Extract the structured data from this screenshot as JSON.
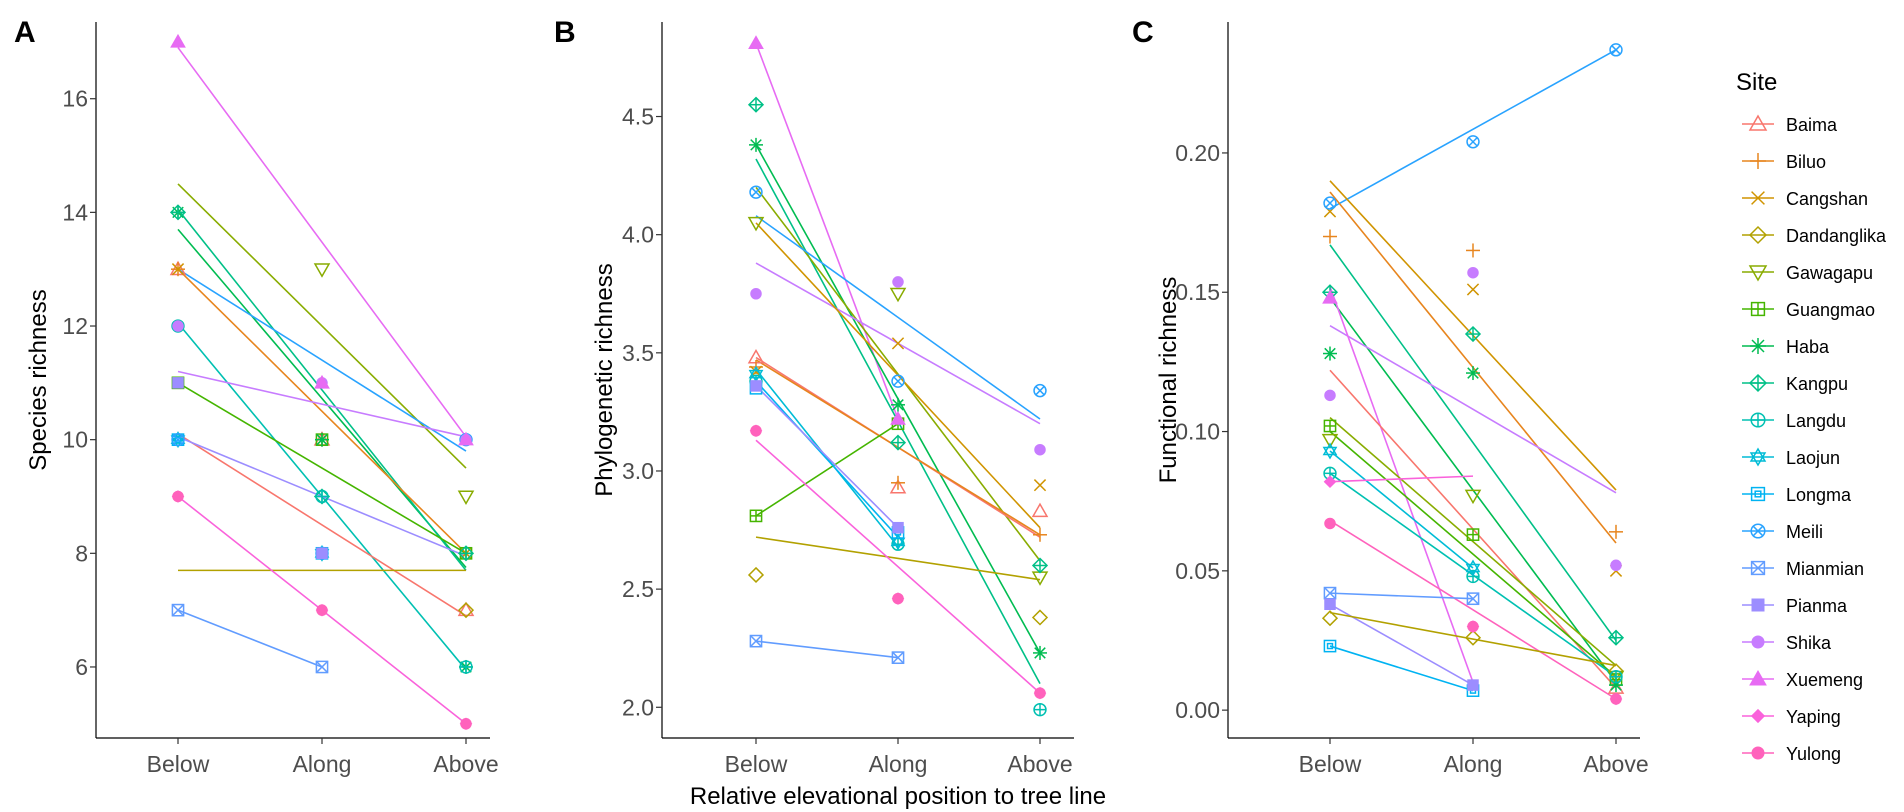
{
  "x_axis_title": "Relative elevational position to tree line",
  "legend": {
    "title": "Site",
    "entries": [
      {
        "name": "Baima",
        "color": "#F8766D",
        "shape": "triangle"
      },
      {
        "name": "Biluo",
        "color": "#E7851E",
        "shape": "plus"
      },
      {
        "name": "Cangshan",
        "color": "#D09400",
        "shape": "cross"
      },
      {
        "name": "Dandanglika",
        "color": "#B2A100",
        "shape": "diamond"
      },
      {
        "name": "Gawagapu",
        "color": "#89AC00",
        "shape": "triangle-down"
      },
      {
        "name": "Guangmao",
        "color": "#45B500",
        "shape": "square-plus"
      },
      {
        "name": "Haba",
        "color": "#00BC51",
        "shape": "asterisk"
      },
      {
        "name": "Kangpu",
        "color": "#00C087",
        "shape": "diamond-plus"
      },
      {
        "name": "Langdu",
        "color": "#00C0B2",
        "shape": "circle-plus"
      },
      {
        "name": "Laojun",
        "color": "#00BCD6",
        "shape": "star-david"
      },
      {
        "name": "Longma",
        "color": "#00B3F2",
        "shape": "square-boxed"
      },
      {
        "name": "Meili",
        "color": "#29A3FF",
        "shape": "circle-x"
      },
      {
        "name": "Mianmian",
        "color": "#619CFF",
        "shape": "square-x"
      },
      {
        "name": "Pianma",
        "color": "#9C8DFF",
        "shape": "square-filled"
      },
      {
        "name": "Shika",
        "color": "#C77CFF",
        "shape": "circle-filled"
      },
      {
        "name": "Xuemeng",
        "color": "#E76BF3",
        "shape": "triangle-filled"
      },
      {
        "name": "Yaping",
        "color": "#FA62DB",
        "shape": "diamond-filled"
      },
      {
        "name": "Yulong",
        "color": "#FF62BC",
        "shape": "circle-filled"
      }
    ]
  },
  "chart_data": [
    {
      "panel": "A",
      "type": "scatter",
      "ylabel": "Species richness",
      "categories": [
        "Below",
        "Along",
        "Above"
      ],
      "ylim": [
        4.75,
        17.35
      ],
      "yticks": [
        6,
        8,
        10,
        12,
        14,
        16
      ],
      "ytick_labels": [
        "6",
        "8",
        "10",
        "12",
        "14",
        "16"
      ],
      "points": [
        {
          "site": "Baima",
          "values": [
            13,
            10,
            7
          ]
        },
        {
          "site": "Biluo",
          "values": [
            13,
            10,
            8
          ]
        },
        {
          "site": "Cangshan",
          "values": [
            13,
            10,
            8
          ]
        },
        {
          "site": "Dandanglika",
          "values": [
            null,
            null,
            7
          ]
        },
        {
          "site": "Gawagapu",
          "values": [
            null,
            13,
            9
          ]
        },
        {
          "site": "Guangmao",
          "values": [
            11,
            10,
            8
          ]
        },
        {
          "site": "Haba",
          "values": [
            14,
            10,
            6
          ]
        },
        {
          "site": "Kangpu",
          "values": [
            14,
            9,
            8
          ]
        },
        {
          "site": "Langdu",
          "values": [
            12,
            9,
            6
          ]
        },
        {
          "site": "Laojun",
          "values": [
            10,
            8,
            null
          ]
        },
        {
          "site": "Longma",
          "values": [
            10,
            8,
            null
          ]
        },
        {
          "site": "Meili",
          "values": [
            10,
            8,
            10
          ]
        },
        {
          "site": "Mianmian",
          "values": [
            7,
            6,
            null
          ]
        },
        {
          "site": "Pianma",
          "values": [
            11,
            8,
            null
          ]
        },
        {
          "site": "Shika",
          "values": [
            12,
            11,
            10
          ]
        },
        {
          "site": "Xuemeng",
          "values": [
            17,
            11,
            10
          ]
        },
        {
          "site": "Yaping",
          "values": [
            9,
            7,
            5
          ]
        },
        {
          "site": "Yulong",
          "values": [
            9,
            7,
            5
          ]
        }
      ],
      "fits": [
        {
          "site": "Gawagapu",
          "y": [
            14.5,
            9.5
          ]
        },
        {
          "site": "Xuemeng",
          "y": [
            16.9,
            10.05
          ]
        },
        {
          "site": "Haba",
          "y": [
            13.7,
            7.75
          ]
        },
        {
          "site": "Kangpu",
          "y": [
            14.05,
            7.7
          ]
        },
        {
          "site": "Meili",
          "y": [
            13.0,
            9.8
          ]
        },
        {
          "site": "Biluo",
          "y": [
            13.0,
            8.0
          ]
        },
        {
          "site": "Langdu",
          "y": [
            12.05,
            5.95
          ]
        },
        {
          "site": "Shika",
          "y": [
            11.2,
            10.05
          ]
        },
        {
          "site": "Guangmao",
          "y": [
            11.0,
            8.0
          ]
        },
        {
          "site": "Baima",
          "y": [
            10.1,
            6.9
          ]
        },
        {
          "site": "Pianma",
          "y": [
            10.05,
            7.95
          ]
        },
        {
          "site": "Dandanglika",
          "y": [
            7.7,
            7.7
          ]
        },
        {
          "site": "Yaping",
          "y": [
            9.0,
            5.0
          ]
        },
        {
          "site": "Mianmian",
          "y": [
            7.0,
            6.0
          ],
          "x_end": 1
        }
      ]
    },
    {
      "panel": "B",
      "type": "scatter",
      "ylabel": "Phylogenetic richness",
      "categories": [
        "Below",
        "Along",
        "Above"
      ],
      "ylim": [
        1.87,
        4.9
      ],
      "yticks": [
        2.0,
        2.5,
        3.0,
        3.5,
        4.0,
        4.5
      ],
      "ytick_labels": [
        "2.0",
        "2.5",
        "3.0",
        "3.5",
        "4.0",
        "4.5"
      ],
      "points": [
        {
          "site": "Baima",
          "values": [
            3.48,
            2.93,
            2.83
          ]
        },
        {
          "site": "Biluo",
          "values": [
            3.44,
            2.95,
            2.73
          ]
        },
        {
          "site": "Cangshan",
          "values": [
            3.42,
            3.54,
            2.94
          ]
        },
        {
          "site": "Dandanglika",
          "values": [
            2.56,
            null,
            2.38
          ]
        },
        {
          "site": "Gawagapu",
          "values": [
            4.05,
            3.75,
            2.55
          ]
        },
        {
          "site": "Guangmao",
          "values": [
            2.81,
            3.2,
            null
          ]
        },
        {
          "site": "Haba",
          "values": [
            4.38,
            3.28,
            2.23
          ]
        },
        {
          "site": "Kangpu",
          "values": [
            4.55,
            3.12,
            2.6
          ]
        },
        {
          "site": "Langdu",
          "values": [
            3.38,
            2.69,
            1.99
          ]
        },
        {
          "site": "Laojun",
          "values": [
            3.41,
            2.7,
            null
          ]
        },
        {
          "site": "Longma",
          "values": [
            3.35,
            2.74,
            null
          ]
        },
        {
          "site": "Meili",
          "values": [
            4.18,
            3.38,
            3.34
          ]
        },
        {
          "site": "Mianmian",
          "values": [
            2.28,
            2.21,
            null
          ]
        },
        {
          "site": "Pianma",
          "values": [
            3.36,
            2.76,
            null
          ]
        },
        {
          "site": "Shika",
          "values": [
            3.75,
            3.8,
            3.09
          ]
        },
        {
          "site": "Xuemeng",
          "values": [
            4.81,
            3.22,
            null
          ]
        },
        {
          "site": "Yaping",
          "values": [
            3.17,
            2.46,
            2.06
          ]
        },
        {
          "site": "Yulong",
          "values": [
            3.17,
            2.46,
            2.06
          ]
        }
      ],
      "fits": [
        {
          "site": "Xuemeng",
          "y": [
            4.81,
            3.22
          ],
          "x_end": 1
        },
        {
          "site": "Haba",
          "y": [
            4.38,
            2.23
          ]
        },
        {
          "site": "Kangpu",
          "y": [
            4.32,
            2.1
          ]
        },
        {
          "site": "Gawagapu",
          "y": [
            4.2,
            2.62
          ]
        },
        {
          "site": "Meili",
          "y": [
            4.08,
            3.22
          ]
        },
        {
          "site": "Shika",
          "y": [
            3.88,
            3.2
          ]
        },
        {
          "site": "Cangshan",
          "y": [
            4.05,
            2.76
          ]
        },
        {
          "site": "Baima",
          "y": [
            3.48,
            2.72
          ]
        },
        {
          "site": "Biluo",
          "y": [
            3.47,
            2.73
          ]
        },
        {
          "site": "Guangmao",
          "y": [
            2.81,
            3.2
          ],
          "x_end": 1
        },
        {
          "site": "Laojun",
          "y": [
            3.43,
            2.68
          ],
          "x_end": 1
        },
        {
          "site": "Longma",
          "y": [
            3.38,
            2.72
          ],
          "x_end": 1
        },
        {
          "site": "Pianma",
          "y": [
            3.36,
            2.76
          ],
          "x_end": 1
        },
        {
          "site": "Dandanglika",
          "y": [
            2.72,
            2.54
          ]
        },
        {
          "site": "Yaping",
          "y": [
            3.13,
            2.06
          ]
        },
        {
          "site": "Mianmian",
          "y": [
            2.28,
            2.21
          ],
          "x_end": 1
        }
      ]
    },
    {
      "panel": "C",
      "type": "scatter",
      "ylabel": "Functional richness",
      "categories": [
        "Below",
        "Along",
        "Above"
      ],
      "ylim": [
        -0.01,
        0.247
      ],
      "yticks": [
        0.0,
        0.05,
        0.1,
        0.15,
        0.2
      ],
      "ytick_labels": [
        "0.00",
        "0.05",
        "0.10",
        "0.15",
        "0.20"
      ],
      "points": [
        {
          "site": "Baima",
          "values": [
            null,
            null,
            0.008
          ]
        },
        {
          "site": "Biluo",
          "values": [
            0.17,
            0.165,
            0.064
          ]
        },
        {
          "site": "Cangshan",
          "values": [
            0.179,
            0.151,
            0.05
          ]
        },
        {
          "site": "Dandanglika",
          "values": [
            0.033,
            0.026,
            0.014
          ]
        },
        {
          "site": "Gawagapu",
          "values": [
            0.097,
            0.077,
            0.012
          ]
        },
        {
          "site": "Guangmao",
          "values": [
            0.102,
            0.063,
            0.011
          ]
        },
        {
          "site": "Haba",
          "values": [
            0.128,
            0.121,
            0.009
          ]
        },
        {
          "site": "Kangpu",
          "values": [
            0.15,
            0.135,
            0.026
          ]
        },
        {
          "site": "Langdu",
          "values": [
            0.085,
            0.048,
            0.012
          ]
        },
        {
          "site": "Laojun",
          "values": [
            0.093,
            0.051,
            null
          ]
        },
        {
          "site": "Longma",
          "values": [
            0.023,
            0.007,
            null
          ]
        },
        {
          "site": "Meili",
          "values": [
            0.182,
            0.204,
            0.237
          ]
        },
        {
          "site": "Mianmian",
          "values": [
            0.042,
            0.04,
            null
          ]
        },
        {
          "site": "Pianma",
          "values": [
            0.038,
            0.009,
            null
          ]
        },
        {
          "site": "Shika",
          "values": [
            0.113,
            0.157,
            0.052
          ]
        },
        {
          "site": "Xuemeng",
          "values": [
            0.148,
            null,
            null
          ]
        },
        {
          "site": "Yaping",
          "values": [
            0.082,
            0.03,
            0.004
          ]
        },
        {
          "site": "Yulong",
          "values": [
            0.067,
            0.03,
            0.004
          ]
        }
      ],
      "fits": [
        {
          "site": "Meili",
          "y": [
            0.18,
            0.237
          ]
        },
        {
          "site": "Cangshan",
          "y": [
            0.19,
            0.079
          ]
        },
        {
          "site": "Biluo",
          "y": [
            0.186,
            0.06
          ]
        },
        {
          "site": "Kangpu",
          "y": [
            0.167,
            0.025
          ]
        },
        {
          "site": "Haba",
          "y": [
            0.148,
            0.01
          ]
        },
        {
          "site": "Shika",
          "y": [
            0.138,
            0.078
          ]
        },
        {
          "site": "Xuemeng",
          "y": [
            0.152,
            0.01
          ],
          "x_end": 1
        },
        {
          "site": "Baima",
          "y": [
            0.122,
            0.008
          ]
        },
        {
          "site": "Guangmao",
          "y": [
            0.1,
            0.012
          ]
        },
        {
          "site": "Gawagapu",
          "y": [
            0.105,
            0.016
          ]
        },
        {
          "site": "Laojun",
          "y": [
            0.093,
            0.051
          ],
          "x_end": 1
        },
        {
          "site": "Langdu",
          "y": [
            0.085,
            0.012
          ]
        },
        {
          "site": "Yaping",
          "y": [
            0.082,
            0.084
          ],
          "x_end": 1
        },
        {
          "site": "Yulong",
          "y": [
            0.068,
            0.004
          ]
        },
        {
          "site": "Mianmian",
          "y": [
            0.042,
            0.04
          ],
          "x_end": 1
        },
        {
          "site": "Pianma",
          "y": [
            0.038,
            0.009
          ],
          "x_end": 1
        },
        {
          "site": "Dandanglika",
          "y": [
            0.035,
            0.016
          ]
        },
        {
          "site": "Longma",
          "y": [
            0.023,
            0.007
          ],
          "x_end": 1
        }
      ]
    }
  ]
}
